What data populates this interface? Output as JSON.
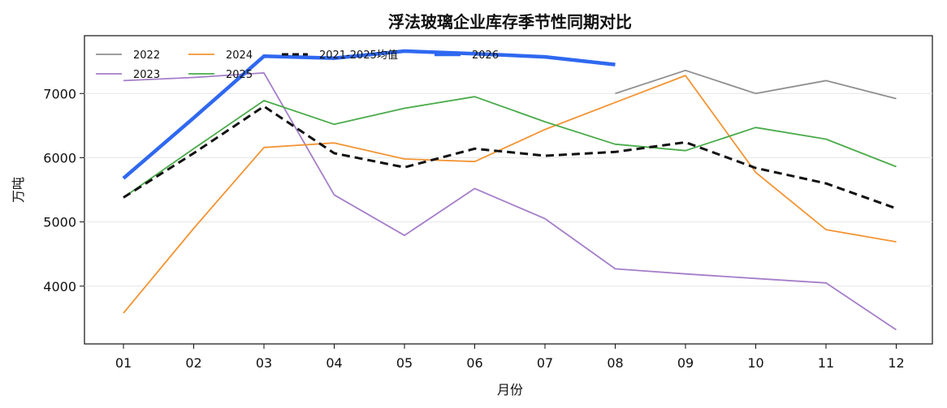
{
  "chart_data": {
    "type": "line",
    "title": "浮法玻璃企业库存季节性同期对比",
    "xlabel": "月份",
    "ylabel": "万吨",
    "categories": [
      "01",
      "02",
      "03",
      "04",
      "05",
      "06",
      "07",
      "08",
      "09",
      "10",
      "11",
      "12"
    ],
    "y_ticks": [
      4000,
      5000,
      6000,
      7000
    ],
    "ylim": [
      3100,
      7900
    ],
    "grid": "horizontal",
    "legend_position": "top-left",
    "series": [
      {
        "name": "2022",
        "color": "#8f8f8f",
        "style": "solid",
        "width": "thin",
        "values": [
          null,
          null,
          null,
          null,
          null,
          null,
          null,
          7000,
          7360,
          7000,
          7200,
          6920
        ]
      },
      {
        "name": "2023",
        "color": "#a57ec9",
        "style": "solid",
        "width": "thin",
        "values": [
          7200,
          7250,
          7320,
          5420,
          4790,
          5520,
          5050,
          4270,
          4190,
          4120,
          4050,
          3320
        ]
      },
      {
        "name": "2024",
        "color": "#f39433",
        "style": "solid",
        "width": "thin",
        "values": [
          3580,
          4900,
          6160,
          6230,
          5980,
          5940,
          6440,
          6860,
          7280,
          5770,
          4880,
          4690
        ]
      },
      {
        "name": "2025",
        "color": "#4aab4a",
        "style": "solid",
        "width": "thin",
        "values": [
          5380,
          6140,
          6890,
          6520,
          6770,
          6950,
          6560,
          6210,
          6110,
          6470,
          6290,
          5860
        ]
      },
      {
        "name": "2021-2025均值",
        "color": "#111111",
        "style": "dashed",
        "width": "medium",
        "values": [
          5380,
          6070,
          6800,
          6070,
          5850,
          6140,
          6030,
          6090,
          6240,
          5840,
          5600,
          5210
        ]
      },
      {
        "name": "2026",
        "color": "#2f68f0",
        "style": "solid",
        "width": "thick",
        "values": [
          5680,
          6620,
          7580,
          7550,
          7660,
          7620,
          7570,
          7450,
          null,
          null,
          null,
          null
        ]
      }
    ]
  }
}
